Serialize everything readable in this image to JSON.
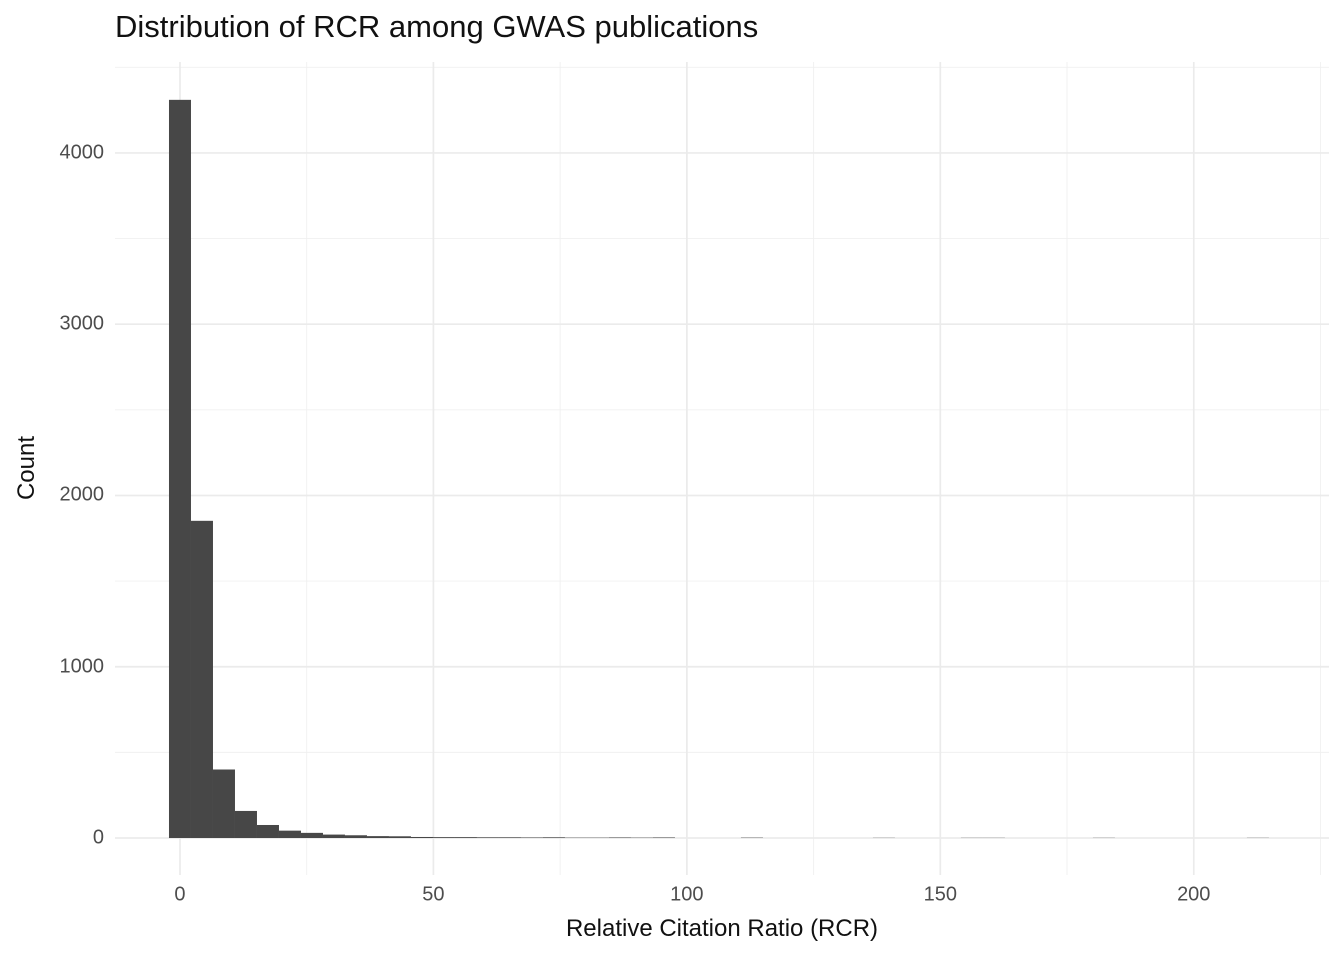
{
  "chart_data": {
    "type": "bar",
    "subtype": "histogram",
    "title": "Distribution of RCR among GWAS publications",
    "xlabel": "Relative Citation Ratio (RCR)",
    "ylabel": "Count",
    "bin_width": 4.34,
    "bin_start": -2.17,
    "bin_centers_note": "bin i is centered at i * 4.34 RCR units",
    "counts": [
      4310,
      1852,
      400,
      158,
      76,
      43,
      30,
      20,
      16,
      11,
      10,
      6,
      5,
      5,
      4,
      4,
      3,
      4,
      2,
      2,
      3,
      2,
      3,
      0,
      0,
      0,
      2,
      0,
      0,
      0,
      0,
      0,
      1,
      0,
      0,
      0,
      1,
      1,
      0,
      0,
      0,
      0,
      1,
      0,
      0,
      0,
      0,
      0,
      0,
      1
    ],
    "x_ticks": [
      0,
      50,
      100,
      150,
      200
    ],
    "x_minor_ticks": [
      25,
      75,
      125,
      175,
      225
    ],
    "y_ticks": [
      0,
      1000,
      2000,
      3000,
      4000
    ],
    "y_minor_ticks": [
      500,
      1500,
      2500,
      3500,
      4500
    ],
    "xlim": [
      -12.82,
      226.68
    ],
    "ylim": [
      -216,
      4531
    ],
    "grid": "major-and-minor, light gray on white, no axis lines, no tick marks",
    "legend_position": "none",
    "colors": {
      "bar_fill": "#474747",
      "grid_major": "#EBEBEB",
      "grid_minor": "#F0F0F0",
      "tick_label": "#4D4D4D",
      "text": "#111111",
      "background": "#FFFFFF"
    }
  }
}
